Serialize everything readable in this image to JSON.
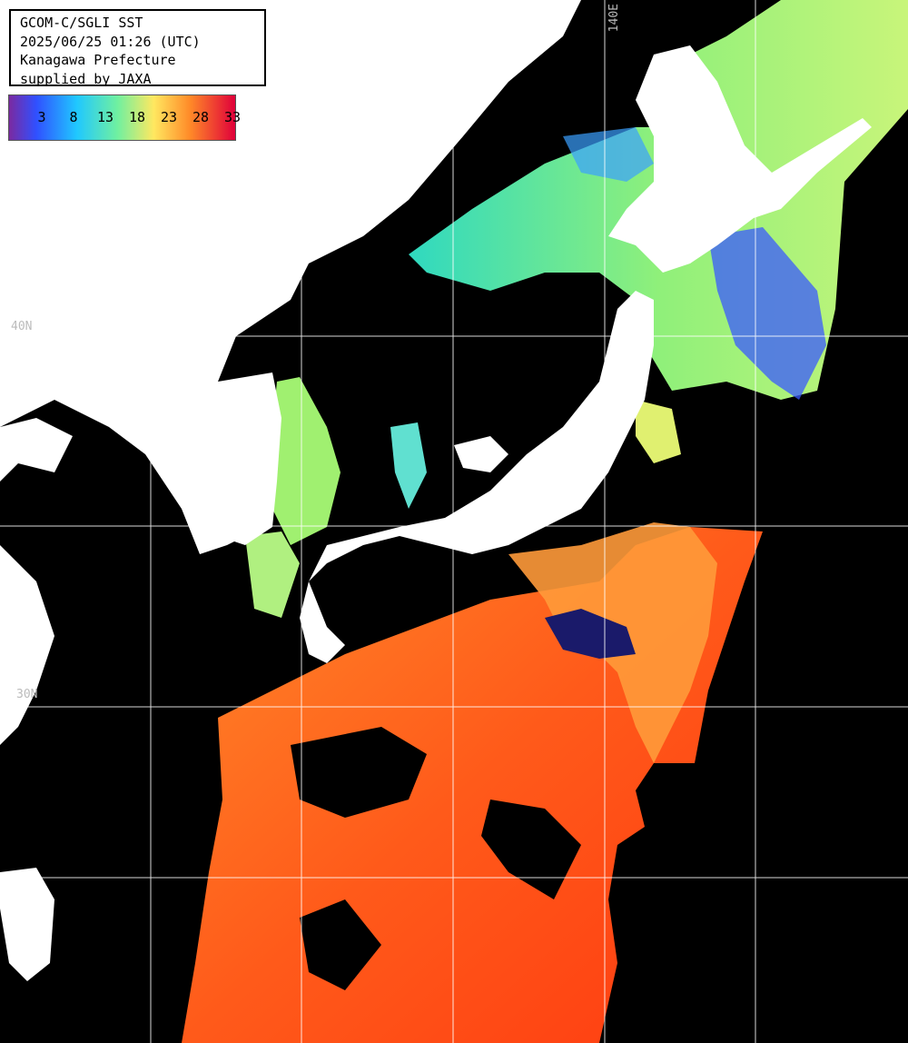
{
  "info": {
    "line1": "GCOM-C/SGLI SST",
    "line2": "2025/06/25 01:26 (UTC)",
    "line3": "Kanagawa Prefecture",
    "line4": "supplied by JAXA"
  },
  "legend": {
    "ticks": [
      "3",
      "8",
      "13",
      "18",
      "23",
      "28",
      "33"
    ],
    "colors": [
      "#6a1fa0",
      "#1f5fff",
      "#19e0ff",
      "#9df070",
      "#ffe060",
      "#ff7d1e",
      "#e0002a"
    ]
  },
  "grid": {
    "lon_label": "140E",
    "lat40_label": "40N",
    "lat30_label": "30N"
  },
  "colors": {
    "land": "#ffffff",
    "cloud": "#000000",
    "grid": "#ffffff"
  }
}
